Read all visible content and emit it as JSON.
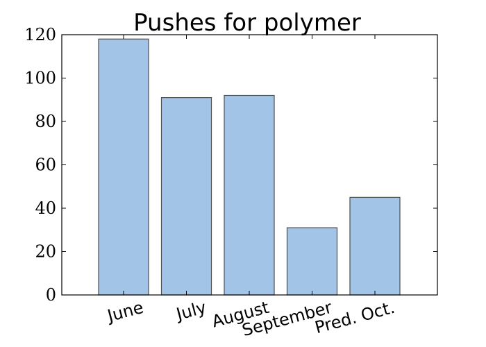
{
  "chart_data": {
    "type": "bar",
    "title": "Pushes for polymer",
    "xlabel": "",
    "ylabel": "",
    "categories": [
      "June",
      "July",
      "August",
      "September",
      "Pred. Oct."
    ],
    "values": [
      118,
      91,
      92,
      31,
      45
    ],
    "ylim": [
      0,
      120
    ],
    "yticks": [
      "0",
      "20",
      "40",
      "60",
      "80",
      "100",
      "120"
    ],
    "grid": false,
    "legend": "none",
    "bar_color": "#a2c4e6",
    "bar_edge_color": "#4d4d4d",
    "xtick_rotation_deg": -15
  }
}
